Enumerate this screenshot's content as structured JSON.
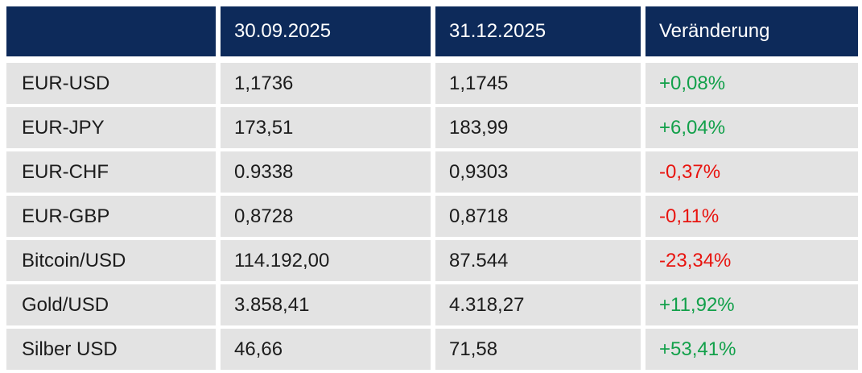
{
  "chart_data": {
    "type": "table",
    "title": "",
    "columns": [
      "",
      "30.09.2025",
      "31.12.2025",
      "Veränderung"
    ],
    "rows": [
      {
        "label": "EUR-USD",
        "value_start": "1,1736",
        "value_end": "1,1745",
        "change": "+0,08%",
        "direction": "up"
      },
      {
        "label": "EUR-JPY",
        "value_start": "173,51",
        "value_end": "183,99",
        "change": "+6,04%",
        "direction": "up"
      },
      {
        "label": "EUR-CHF",
        "value_start": "0.9338",
        "value_end": "0,9303",
        "change": "-0,37%",
        "direction": "down"
      },
      {
        "label": "EUR-GBP",
        "value_start": "0,8728",
        "value_end": "0,8718",
        "change": "-0,11%",
        "direction": "down"
      },
      {
        "label": "Bitcoin/USD",
        "value_start": "114.192,00",
        "value_end": "87.544",
        "change": "-23,34%",
        "direction": "down"
      },
      {
        "label": "Gold/USD",
        "value_start": "3.858,41",
        "value_end": "4.318,27",
        "change": "+11,92%",
        "direction": "up"
      },
      {
        "label": "Silber USD",
        "value_start": "46,66",
        "value_end": "71,58",
        "change": "+53,41%",
        "direction": "up"
      }
    ],
    "colors": {
      "header_bg": "#0d2a5a",
      "header_text": "#ffffff",
      "row_bg": "#e3e3e3",
      "body_text": "#1c1c1c",
      "positive": "#12a04a",
      "negative": "#e8140f"
    },
    "layout": {
      "grid": "off",
      "legend": "none"
    }
  }
}
